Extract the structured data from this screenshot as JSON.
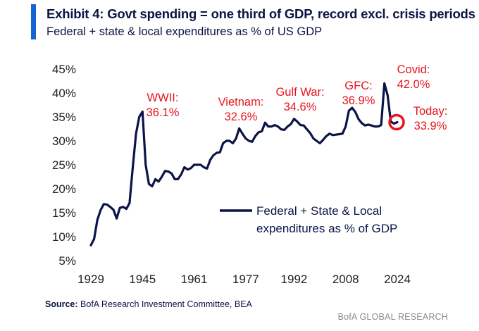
{
  "header": {
    "title": "Exhibit 4: Govt spending = one third of GDP, record excl. crisis periods",
    "subtitle": "Federal + state & local expenditures as % of US GDP"
  },
  "footer": {
    "source_label": "Source:",
    "source_text": "BofA Research Investment Committee, BEA",
    "brand": "BofA GLOBAL RESEARCH"
  },
  "colors": {
    "line": "#0b1446",
    "annotation": "#e8141e",
    "accent": "#1464d2"
  },
  "chart_data": {
    "type": "line",
    "title": "Exhibit 4: Govt spending = one third of GDP, record excl. crisis periods",
    "subtitle": "Federal + state & local expenditures as % of US GDP",
    "xlabel": "",
    "ylabel": "",
    "xlim": [
      1929,
      2024
    ],
    "ylim": [
      5,
      45
    ],
    "x_ticks": [
      1929,
      1945,
      1961,
      1977,
      1992,
      2008,
      2024
    ],
    "y_ticks": [
      5,
      10,
      15,
      20,
      25,
      30,
      35,
      40,
      45
    ],
    "y_tick_labels": [
      "5%",
      "10%",
      "15%",
      "20%",
      "25%",
      "30%",
      "35%",
      "40%",
      "45%"
    ],
    "grid": false,
    "legend": {
      "position": "center-right",
      "label_line1": "Federal + State & Local",
      "label_line2": "expenditures as % of GDP"
    },
    "series": [
      {
        "name": "Federal + State & Local expenditures as % of GDP",
        "x": [
          1929,
          1930,
          1931,
          1932,
          1933,
          1934,
          1935,
          1936,
          1937,
          1938,
          1939,
          1940,
          1941,
          1942,
          1943,
          1944,
          1945,
          1946,
          1947,
          1948,
          1949,
          1950,
          1951,
          1952,
          1953,
          1954,
          1955,
          1956,
          1957,
          1958,
          1959,
          1960,
          1961,
          1962,
          1963,
          1964,
          1965,
          1966,
          1967,
          1968,
          1969,
          1970,
          1971,
          1972,
          1973,
          1974,
          1975,
          1976,
          1977,
          1978,
          1979,
          1980,
          1981,
          1982,
          1983,
          1984,
          1985,
          1986,
          1987,
          1988,
          1989,
          1990,
          1991,
          1992,
          1993,
          1994,
          1995,
          1996,
          1997,
          1998,
          1999,
          2000,
          2001,
          2002,
          2003,
          2004,
          2005,
          2006,
          2007,
          2008,
          2009,
          2010,
          2011,
          2012,
          2013,
          2014,
          2015,
          2016,
          2017,
          2018,
          2019,
          2020,
          2021,
          2022,
          2023,
          2024
        ],
        "values": [
          8.2,
          9.5,
          13.5,
          15.5,
          16.8,
          16.7,
          16.2,
          15.6,
          13.8,
          16.0,
          16.2,
          15.8,
          17.0,
          24.5,
          31.5,
          35.0,
          36.1,
          25.0,
          21.0,
          20.5,
          22.0,
          21.5,
          22.5,
          23.7,
          23.6,
          23.2,
          22.0,
          22.0,
          23.0,
          24.5,
          24.0,
          24.3,
          25.0,
          25.0,
          25.0,
          24.5,
          24.2,
          26.0,
          27.0,
          27.5,
          27.6,
          29.5,
          30.0,
          30.0,
          29.5,
          30.5,
          32.6,
          31.5,
          30.5,
          30.0,
          29.8,
          31.0,
          31.8,
          32.0,
          33.8,
          33.0,
          33.0,
          33.3,
          33.0,
          32.4,
          32.3,
          33.0,
          33.5,
          34.6,
          34.0,
          33.3,
          33.2,
          32.4,
          31.6,
          30.5,
          30.0,
          29.5,
          30.2,
          31.0,
          31.5,
          31.2,
          31.3,
          31.4,
          31.5,
          33.0,
          36.3,
          36.9,
          36.0,
          34.5,
          33.7,
          33.2,
          33.4,
          33.2,
          33.0,
          33.0,
          33.3,
          42.0,
          39.5,
          34.0,
          33.6,
          33.9
        ]
      }
    ],
    "annotations": [
      {
        "line1": "WWII:",
        "line2": "36.1%",
        "x": 1945,
        "y": 36.1
      },
      {
        "line1": "Vietnam:",
        "line2": "32.6%",
        "x": 1975,
        "y": 32.6
      },
      {
        "line1": "Gulf War:",
        "line2": "34.6%",
        "x": 1992,
        "y": 34.6
      },
      {
        "line1": "GFC:",
        "line2": "36.9%",
        "x": 2009,
        "y": 36.9
      },
      {
        "line1": "Covid:",
        "line2": "42.0%",
        "x": 2020,
        "y": 42.0
      },
      {
        "line1": "Today:",
        "line2": "33.9%",
        "x": 2024,
        "y": 33.9
      }
    ]
  }
}
